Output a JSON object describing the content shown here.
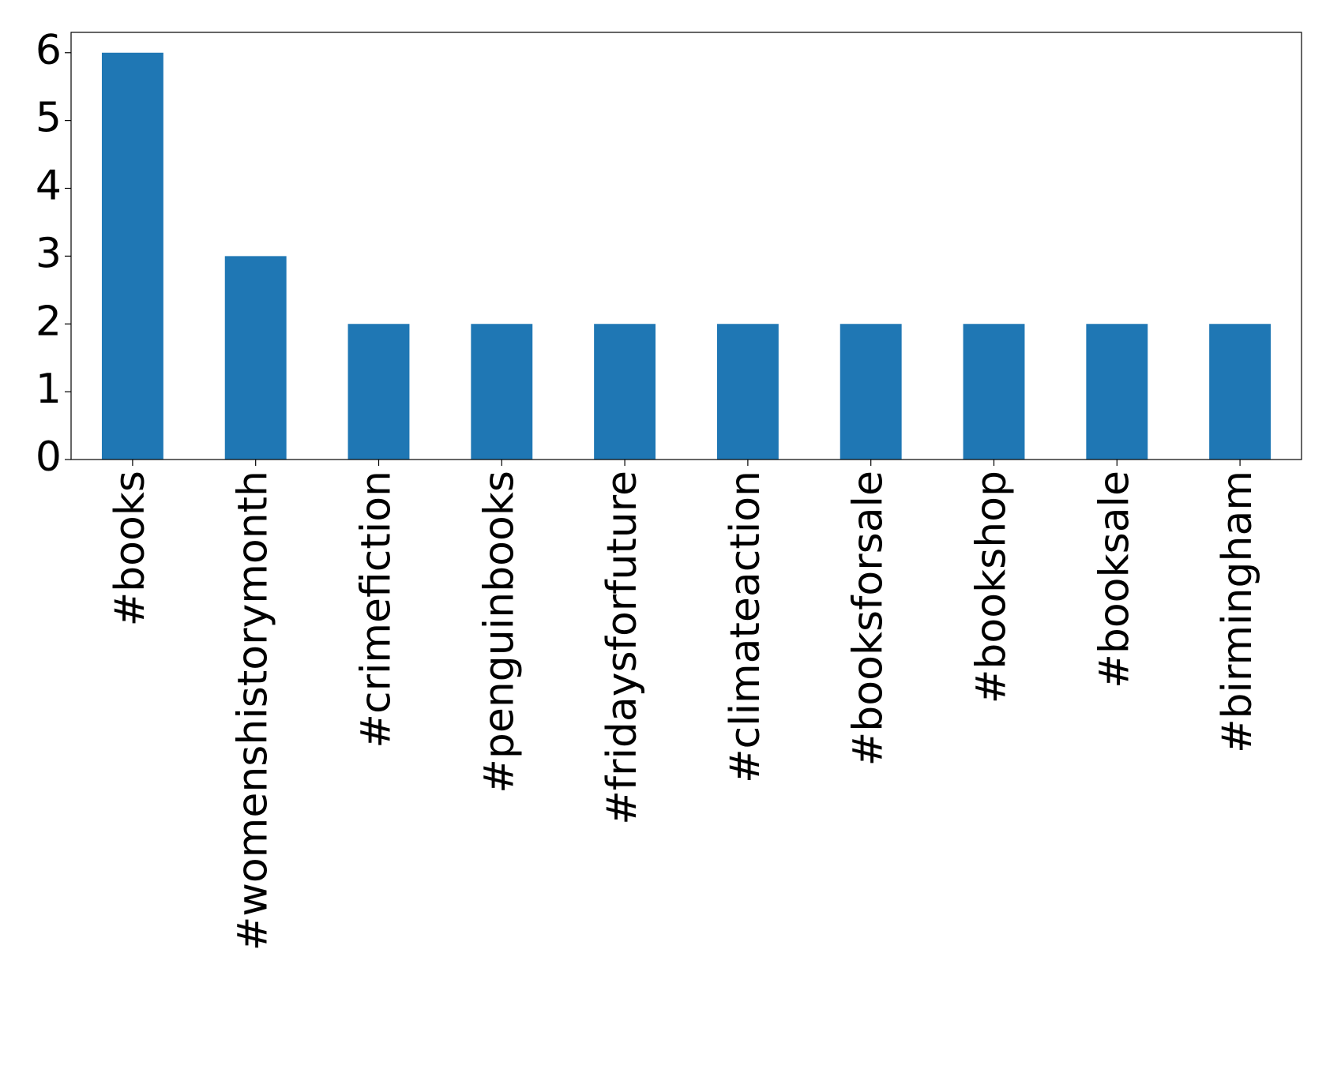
{
  "chart_data": {
    "type": "bar",
    "categories": [
      "#books",
      "#womenshistorymonth",
      "#crimefiction",
      "#penguinbooks",
      "#fridaysforfuture",
      "#climateaction",
      "#booksforsale",
      "#bookshop",
      "#booksale",
      "#birmingham"
    ],
    "values": [
      6,
      3,
      2,
      2,
      2,
      2,
      2,
      2,
      2,
      2
    ],
    "color": "#1f77b4",
    "ylim": [
      0,
      6.3
    ],
    "yticks": [
      0,
      1,
      2,
      3,
      4,
      5,
      6
    ],
    "grid": false
  }
}
